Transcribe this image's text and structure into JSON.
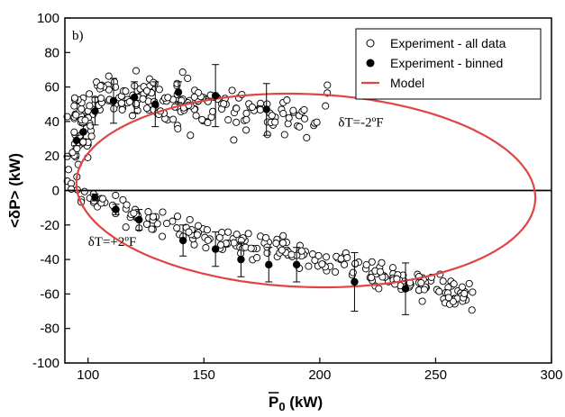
{
  "chart_data": {
    "type": "scatter",
    "panel_label": "b)",
    "xlabel_main": "P",
    "xlabel_sub": "0",
    "xlabel_unit": "(kW)",
    "ylabel": "<δP> (kW)",
    "xlim": [
      90,
      300
    ],
    "ylim": [
      -100,
      100
    ],
    "x_ticks": [
      100,
      150,
      200,
      250,
      300
    ],
    "y_ticks": [
      -100,
      -80,
      -60,
      -40,
      -20,
      0,
      20,
      40,
      60,
      80,
      100
    ],
    "legend": {
      "placement": "top-right",
      "entries": [
        {
          "label": "Experiment - all data",
          "marker": "open-circle"
        },
        {
          "label": "Experiment - binned",
          "marker": "filled-circle"
        },
        {
          "label": "Model",
          "marker": "line"
        }
      ]
    },
    "annotations": [
      {
        "text": "δT=-2ºF",
        "x": 208,
        "y": 37
      },
      {
        "text": "δT=+2ºF",
        "x": 100,
        "y": -32
      }
    ],
    "colors": {
      "model": "#e04545",
      "markers": "#000000"
    },
    "series": [
      {
        "name": "Experiment - binned",
        "points": [
          {
            "x": 95,
            "y": 29,
            "err": 3
          },
          {
            "x": 98,
            "y": 34,
            "err": 4
          },
          {
            "x": 103,
            "y": 46,
            "err": 8
          },
          {
            "x": 111,
            "y": 52,
            "err": 13
          },
          {
            "x": 120,
            "y": 54,
            "err": 9
          },
          {
            "x": 129,
            "y": 50,
            "err": 13
          },
          {
            "x": 139,
            "y": 57,
            "err": 6
          },
          {
            "x": 155,
            "y": 55,
            "err": 18
          },
          {
            "x": 177,
            "y": 47,
            "err": 15
          },
          {
            "x": 103,
            "y": -4,
            "err": 2
          },
          {
            "x": 112,
            "y": -11,
            "err": 3
          },
          {
            "x": 122,
            "y": -17,
            "err": 6
          },
          {
            "x": 141,
            "y": -29,
            "err": 9
          },
          {
            "x": 155,
            "y": -34,
            "err": 10
          },
          {
            "x": 166,
            "y": -40,
            "err": 10
          },
          {
            "x": 178,
            "y": -43,
            "err": 10
          },
          {
            "x": 190,
            "y": -43,
            "err": 10
          },
          {
            "x": 215,
            "y": -53,
            "err": 17
          },
          {
            "x": 237,
            "y": -57,
            "err": 15
          }
        ]
      },
      {
        "name": "Model",
        "ellipse": {
          "center_x": 194,
          "center_y": 0,
          "semi_x": 100,
          "semi_y": 56,
          "tilt_deg": -8
        }
      }
    ],
    "horizontal_line_y": 0
  }
}
